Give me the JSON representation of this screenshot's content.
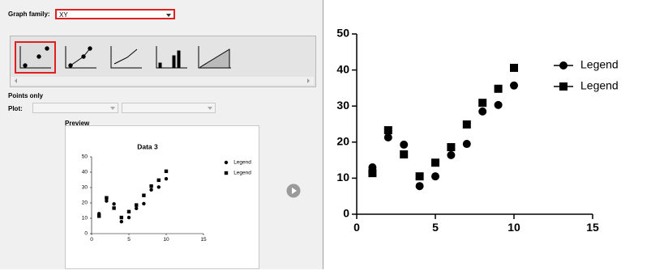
{
  "dialog": {
    "graph_family_label": "Graph family:",
    "graph_family_value": "XY",
    "gallery_caption": "Points only",
    "plot_label": "Plot:",
    "preview_label": "Preview"
  },
  "preview": {
    "title": "Data 3"
  },
  "chart_data": {
    "type": "line",
    "x": [
      1,
      2,
      3,
      4,
      5,
      6,
      7,
      8,
      9,
      10
    ],
    "series": [
      {
        "name": "Legend",
        "color": "#000000",
        "marker": "circle",
        "values": [
          13.0,
          21.3,
          19.3,
          7.8,
          10.5,
          16.4,
          19.5,
          28.5,
          30.3,
          35.7
        ]
      },
      {
        "name": "Legend",
        "color": "#000000",
        "marker": "square",
        "values": [
          11.4,
          23.3,
          16.6,
          10.5,
          14.3,
          18.6,
          24.9,
          30.9,
          34.8,
          40.6
        ]
      }
    ],
    "xlim": [
      0,
      15
    ],
    "xticks": [
      0,
      5,
      10,
      15
    ],
    "ylim": [
      0,
      50
    ],
    "yticks": [
      0,
      10,
      20,
      30,
      40,
      50
    ],
    "legend": "right"
  }
}
